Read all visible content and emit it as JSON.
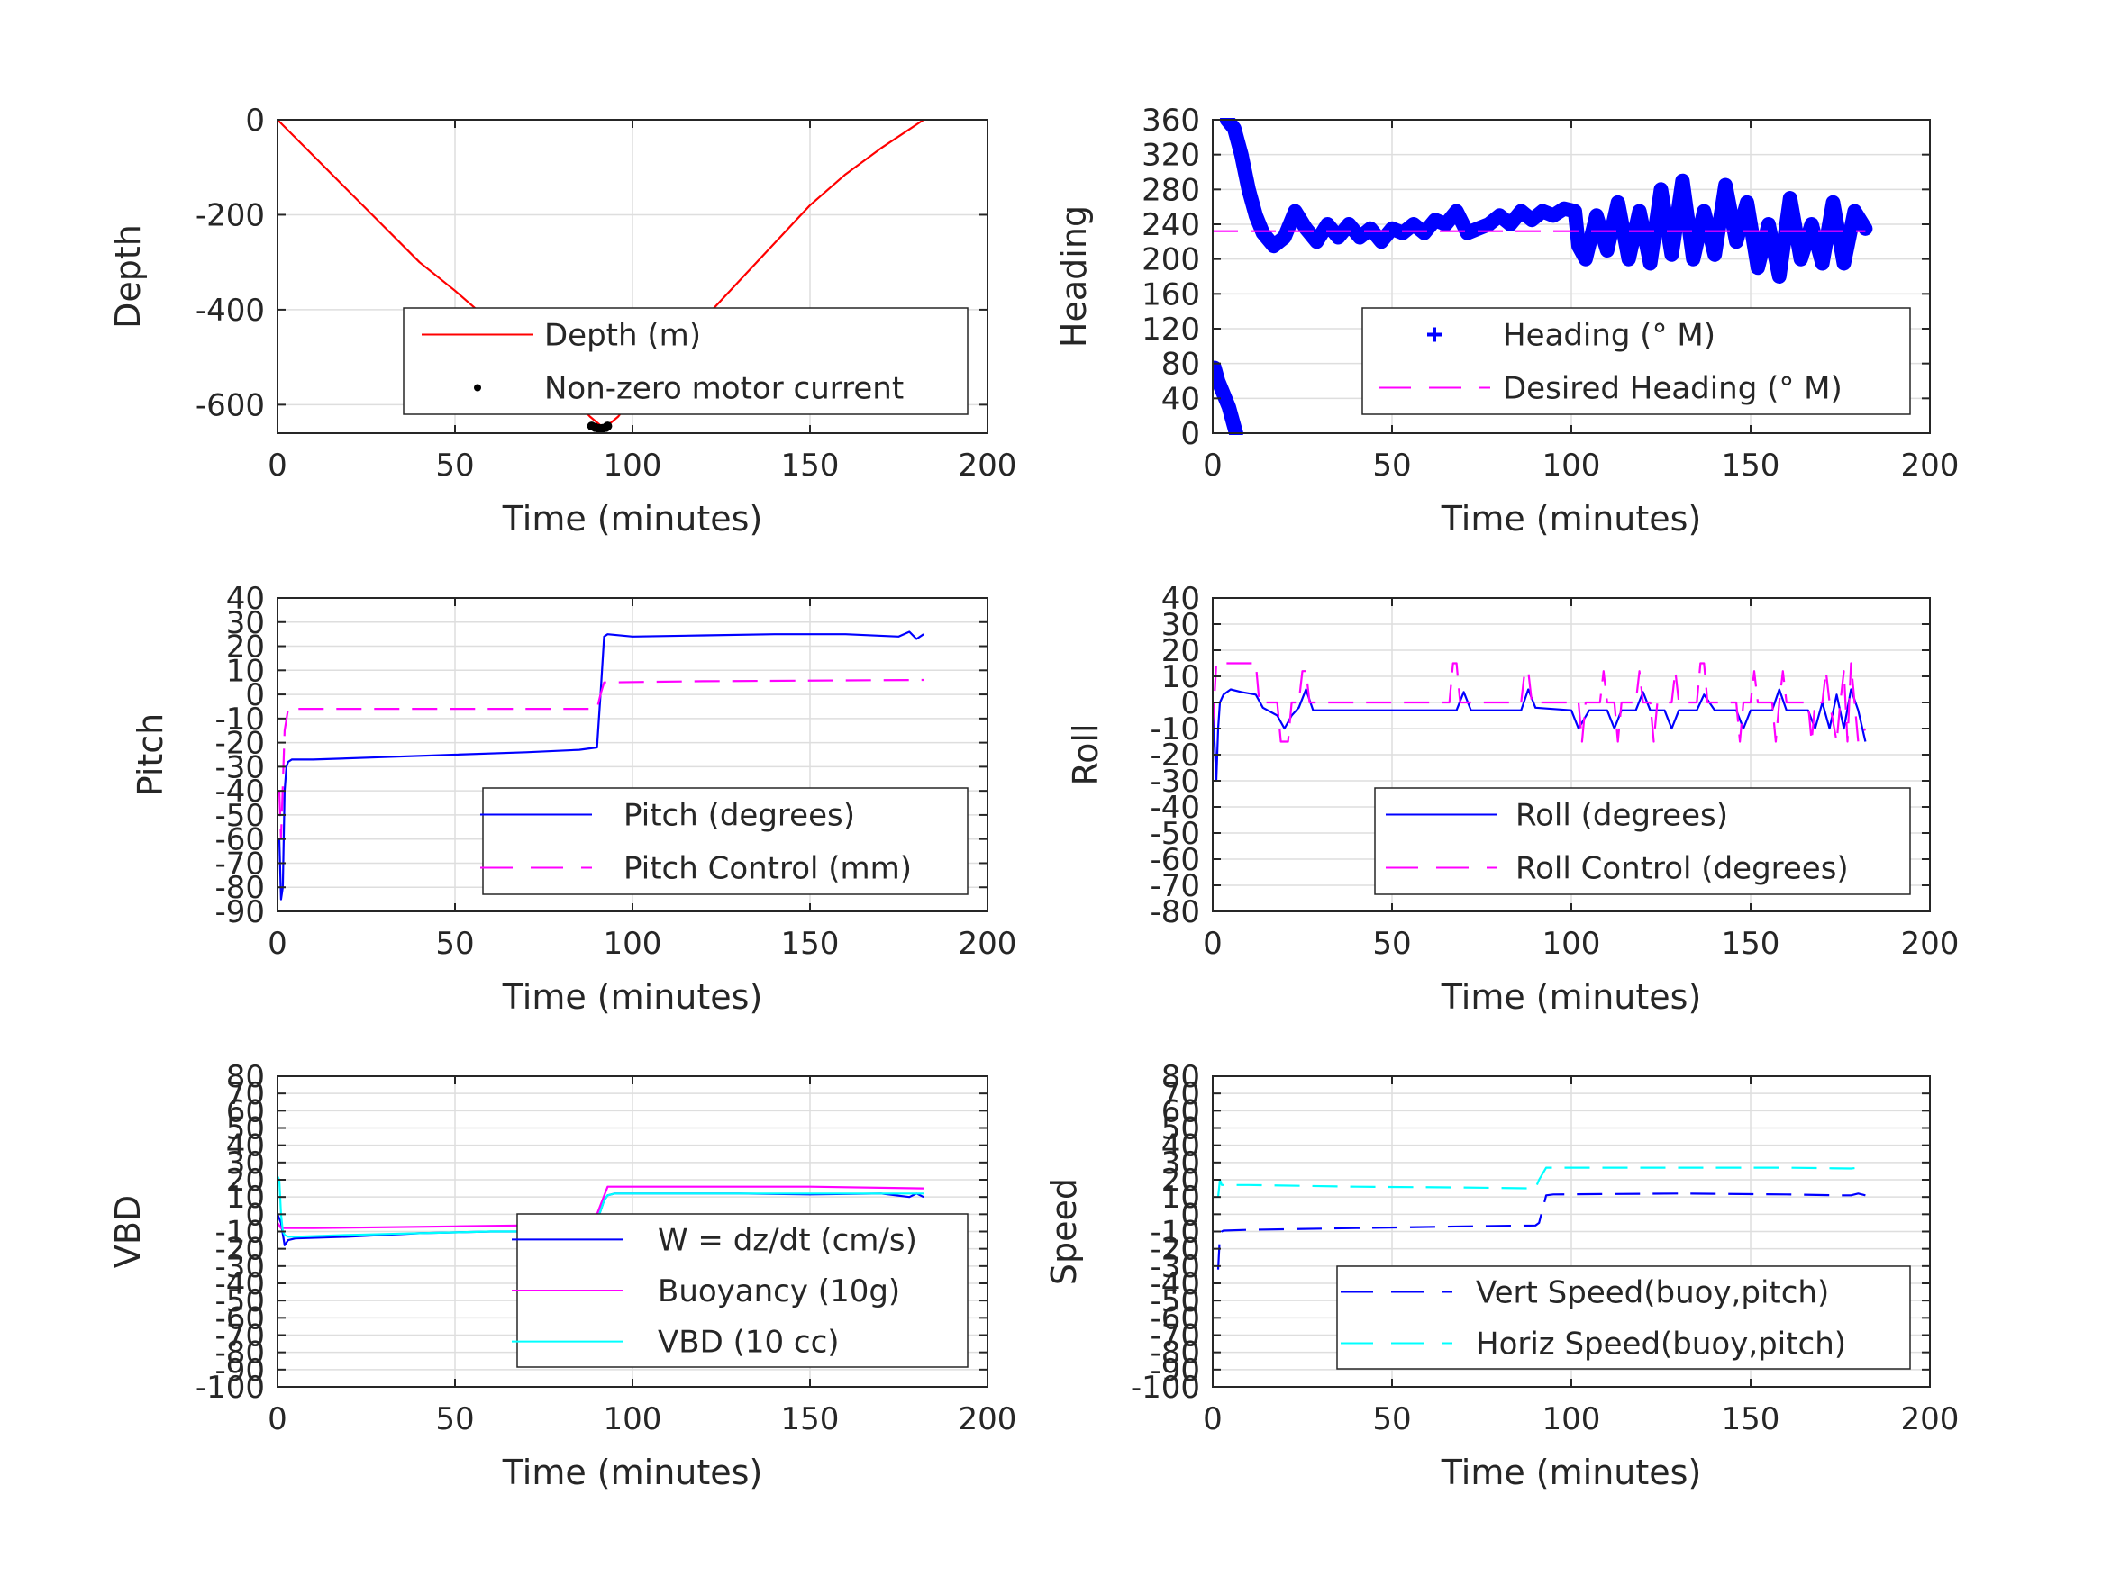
{
  "figure": {
    "background": "#ffffff",
    "grid_color": "#dedede",
    "axis_color": "#262626"
  },
  "chart_data": [
    {
      "id": "depth",
      "type": "line",
      "xlabel": "Time (minutes)",
      "ylabel": "Depth",
      "xlim": [
        0,
        200
      ],
      "ylim": [
        -660,
        0
      ],
      "xticks": [
        0,
        50,
        100,
        150,
        200
      ],
      "yticks": [
        0,
        -200,
        -400,
        -600
      ],
      "grid": true,
      "legend_position": "bottom-right",
      "series": [
        {
          "name": "Depth (m)",
          "color": "#ff0000",
          "style": "solid",
          "x": [
            0,
            10,
            20,
            30,
            40,
            50,
            60,
            70,
            80,
            88,
            92,
            96,
            100,
            110,
            120,
            130,
            140,
            150,
            160,
            170,
            182
          ],
          "y": [
            0,
            -75,
            -150,
            -225,
            -300,
            -360,
            -425,
            -490,
            -560,
            -625,
            -650,
            -625,
            -585,
            -500,
            -420,
            -340,
            -260,
            -180,
            -115,
            -60,
            0
          ]
        },
        {
          "name": "Non-zero motor current",
          "color": "#000000",
          "style": "dots",
          "x": [
            88.5,
            89.5,
            90.5,
            91.5,
            92.5,
            93
          ],
          "y": [
            -645,
            -648,
            -650,
            -650,
            -648,
            -645
          ]
        }
      ]
    },
    {
      "id": "heading",
      "type": "line",
      "xlabel": "Time (minutes)",
      "ylabel": "Heading",
      "xlim": [
        0,
        200
      ],
      "ylim": [
        0,
        360
      ],
      "xticks": [
        0,
        50,
        100,
        150,
        200
      ],
      "yticks": [
        0,
        40,
        80,
        120,
        160,
        200,
        240,
        280,
        320,
        360
      ],
      "grid": true,
      "legend_position": "bottom-right",
      "series": [
        {
          "name": "Heading (° M)",
          "color": "#0000ff",
          "style": "plus-thick",
          "x": [
            4,
            6,
            8,
            10,
            12,
            14,
            17,
            20,
            23,
            26,
            29,
            32,
            35,
            38,
            41,
            44,
            47,
            50,
            53,
            56,
            59,
            62,
            65,
            68,
            71,
            74,
            77,
            80,
            83,
            86,
            89,
            92,
            95,
            98,
            101,
            102,
            104,
            107,
            110,
            113,
            116,
            119,
            122,
            125,
            128,
            131,
            134,
            137,
            140,
            143,
            146,
            149,
            152,
            155,
            158,
            161,
            164,
            167,
            170,
            173,
            176,
            179,
            182
          ],
          "y": [
            360,
            350,
            320,
            280,
            250,
            230,
            215,
            225,
            255,
            235,
            220,
            240,
            225,
            240,
            225,
            235,
            220,
            235,
            230,
            240,
            230,
            245,
            240,
            255,
            230,
            235,
            240,
            250,
            240,
            255,
            245,
            255,
            250,
            258,
            255,
            215,
            200,
            250,
            210,
            265,
            200,
            255,
            195,
            280,
            205,
            290,
            200,
            255,
            205,
            285,
            220,
            265,
            190,
            240,
            180,
            270,
            200,
            240,
            195,
            265,
            195,
            255,
            235
          ]
        },
        {
          "name": "",
          "color": "#0000ff",
          "style": "plus-thick",
          "x": [
            0.5,
            1.5,
            2.5,
            3.5,
            4.5,
            5.5,
            6.5
          ],
          "y": [
            75,
            60,
            50,
            40,
            30,
            15,
            0
          ]
        },
        {
          "name": "Desired Heading (° M)",
          "color": "#ff00ff",
          "style": "dashed",
          "x": [
            0,
            182
          ],
          "y": [
            232,
            232
          ]
        }
      ]
    },
    {
      "id": "pitch",
      "type": "line",
      "xlabel": "Time (minutes)",
      "ylabel": "Pitch",
      "xlim": [
        0,
        200
      ],
      "ylim": [
        -90,
        40
      ],
      "xticks": [
        0,
        50,
        100,
        150,
        200
      ],
      "yticks": [
        40,
        30,
        20,
        10,
        0,
        -10,
        -20,
        -30,
        -40,
        -50,
        -60,
        -70,
        -80,
        -90
      ],
      "grid": true,
      "legend_position": "bottom-right",
      "series": [
        {
          "name": "Pitch (degrees)",
          "color": "#0000ff",
          "style": "solid",
          "x": [
            0.5,
            1,
            1.5,
            2,
            2.5,
            3,
            4,
            10,
            30,
            50,
            70,
            85,
            90,
            91,
            92,
            93,
            100,
            120,
            140,
            160,
            175,
            178,
            180,
            182
          ],
          "y": [
            -60,
            -85,
            -80,
            -40,
            -30,
            -28,
            -27,
            -27,
            -26,
            -25,
            -24,
            -23,
            -22,
            0,
            24,
            25,
            24,
            24.5,
            25,
            25,
            24,
            26,
            23,
            25
          ]
        },
        {
          "name": "Pitch Control (mm)",
          "color": "#ff00ff",
          "style": "dashed",
          "x": [
            0.5,
            1,
            2,
            3,
            10,
            50,
            90,
            91,
            92,
            93,
            120,
            182
          ],
          "y": [
            -40,
            -60,
            -15,
            -6,
            -6,
            -6,
            -6,
            0,
            5,
            5,
            5.5,
            6
          ]
        }
      ]
    },
    {
      "id": "roll",
      "type": "line",
      "xlabel": "Time (minutes)",
      "ylabel": "Roll",
      "xlim": [
        0,
        200
      ],
      "ylim": [
        -80,
        40
      ],
      "xticks": [
        0,
        50,
        100,
        150,
        200
      ],
      "yticks": [
        40,
        30,
        20,
        10,
        0,
        -10,
        -20,
        -30,
        -40,
        -50,
        -60,
        -70,
        -80
      ],
      "grid": true,
      "legend_position": "bottom-right",
      "series": [
        {
          "name": "Roll (degrees)",
          "color": "#0000ff",
          "style": "solid",
          "x": [
            0,
            1,
            1.5,
            2,
            3,
            5,
            8,
            12,
            14,
            18,
            20,
            22,
            24,
            26,
            28,
            40,
            60,
            68,
            70,
            72,
            80,
            86,
            88,
            90,
            100,
            102,
            105,
            110,
            112,
            114,
            118,
            120,
            122,
            126,
            128,
            130,
            135,
            137,
            140,
            146,
            148,
            150,
            156,
            158,
            160,
            166,
            168,
            170,
            172,
            174,
            176,
            178,
            180,
            182
          ],
          "y": [
            0,
            -30,
            -10,
            0,
            3,
            5,
            4,
            3,
            -2,
            -5,
            -10,
            -5,
            -2,
            5,
            -3,
            -3,
            -3,
            -3,
            4,
            -3,
            -3,
            -3,
            5,
            -2,
            -3,
            -10,
            -3,
            -3,
            -10,
            -3,
            -3,
            4,
            -3,
            -3,
            -10,
            -3,
            -3,
            3,
            -3,
            -3,
            -10,
            -3,
            -3,
            5,
            -3,
            -3,
            -10,
            0,
            -10,
            3,
            -10,
            5,
            -3,
            -15
          ]
        },
        {
          "name": "Roll Control (degrees)",
          "color": "#ff00ff",
          "style": "dashed",
          "x": [
            0,
            1,
            2,
            12,
            13,
            18,
            19,
            21,
            22,
            24,
            25,
            26,
            27,
            28,
            65,
            66,
            67,
            68,
            69,
            70,
            86,
            87,
            88,
            89,
            90,
            102,
            103,
            104,
            108,
            109,
            110,
            112,
            113,
            114,
            118,
            119,
            120,
            122,
            123,
            124,
            128,
            129,
            130,
            135,
            136,
            137,
            138,
            139,
            140,
            146,
            147,
            148,
            150,
            151,
            152,
            156,
            157,
            158,
            159,
            160,
            166,
            167,
            168,
            170,
            171,
            172,
            174,
            175,
            176,
            177,
            178,
            179,
            180,
            182
          ],
          "y": [
            -10,
            15,
            15,
            15,
            0,
            0,
            -15,
            -15,
            0,
            0,
            12,
            12,
            0,
            0,
            0,
            0,
            15,
            15,
            0,
            0,
            0,
            12,
            12,
            0,
            0,
            0,
            -15,
            0,
            0,
            12,
            0,
            0,
            -15,
            0,
            0,
            12,
            0,
            0,
            -15,
            0,
            0,
            12,
            0,
            0,
            15,
            15,
            0,
            0,
            0,
            0,
            -15,
            0,
            0,
            12,
            0,
            0,
            -15,
            0,
            12,
            0,
            0,
            -15,
            0,
            0,
            12,
            0,
            -15,
            0,
            12,
            -15,
            15,
            0,
            -15,
            -10
          ]
        }
      ]
    },
    {
      "id": "vbd",
      "type": "line",
      "xlabel": "Time (minutes)",
      "ylabel": "VBD",
      "xlim": [
        0,
        200
      ],
      "ylim": [
        -100,
        80
      ],
      "xticks": [
        0,
        50,
        100,
        150,
        200
      ],
      "yticks": [
        80,
        70,
        60,
        50,
        40,
        30,
        20,
        10,
        0,
        -10,
        -20,
        -30,
        -40,
        -50,
        -60,
        -70,
        -80,
        -90,
        -100
      ],
      "yticklabels": [
        "80",
        "70",
        "60",
        "50",
        "40",
        "30",
        "20",
        "10",
        "0",
        "-10",
        "-20",
        "-30",
        "-40",
        "-50",
        "-60",
        "-70",
        "-80",
        "-90",
        "-100"
      ],
      "grid": true,
      "legend_position": "bottom-right",
      "series": [
        {
          "name": "W = dz/dt (cm/s)",
          "color": "#0000ff",
          "style": "solid",
          "x": [
            0,
            1,
            2,
            3,
            5,
            20,
            40,
            60,
            80,
            89,
            90,
            92,
            93,
            95,
            110,
            130,
            150,
            170,
            178,
            180,
            182
          ],
          "y": [
            0,
            -5,
            -18,
            -15,
            -14,
            -13,
            -11,
            -10,
            -10,
            -9,
            -4,
            8,
            11,
            12,
            12,
            12,
            11.5,
            12,
            10,
            12,
            10
          ]
        },
        {
          "name": "Buoyancy (10g)",
          "color": "#ff00ff",
          "style": "solid",
          "x": [
            0,
            1,
            2,
            3,
            10,
            50,
            89,
            90,
            93,
            95,
            120,
            150,
            182
          ],
          "y": [
            -5,
            -8,
            -8,
            -8,
            -8,
            -7,
            -6,
            0,
            16,
            16,
            16,
            16,
            15
          ]
        },
        {
          "name": "VBD (10 cc)",
          "color": "#00ffff",
          "style": "solid",
          "x": [
            0,
            0.5,
            1,
            1.5,
            2,
            3,
            5,
            20,
            40,
            60,
            80,
            89,
            90,
            92,
            93,
            95,
            110,
            130,
            150,
            170,
            182
          ],
          "y": [
            22,
            20,
            0,
            -10,
            -12,
            -13,
            -13,
            -12,
            -11,
            -10,
            -10,
            -9,
            -4,
            8,
            11,
            12,
            12,
            12,
            12,
            12,
            12
          ]
        }
      ]
    },
    {
      "id": "speed",
      "type": "line",
      "xlabel": "Time (minutes)",
      "ylabel": "Speed",
      "xlim": [
        0,
        200
      ],
      "ylim": [
        -100,
        80
      ],
      "xticks": [
        0,
        50,
        100,
        150,
        200
      ],
      "yticks": [
        80,
        70,
        60,
        50,
        40,
        30,
        20,
        10,
        0,
        -10,
        -20,
        -30,
        -40,
        -50,
        -60,
        -70,
        -80,
        -90,
        -100
      ],
      "yticklabels": [
        "80",
        "70",
        "60",
        "50",
        "40",
        "30",
        "20",
        "10",
        "0",
        "-10",
        "-20",
        "-30",
        "-40",
        "-50",
        "-60",
        "-70",
        "-80",
        "-90",
        "-100"
      ],
      "grid": true,
      "legend_position": "bottom-right",
      "series": [
        {
          "name": "Vert Speed(buoy,pitch)",
          "color": "#0000ff",
          "style": "dashed",
          "x": [
            1.5,
            2,
            2.5,
            3,
            10,
            40,
            70,
            90,
            91,
            93,
            95,
            130,
            160,
            175,
            178,
            180,
            182
          ],
          "y": [
            -32,
            -12,
            -10,
            -9.5,
            -9,
            -8,
            -7,
            -6.5,
            -5,
            11,
            11.5,
            12,
            11.5,
            11,
            11,
            12,
            11
          ]
        },
        {
          "name": "Horiz Speed(buoy,pitch)",
          "color": "#00ffff",
          "style": "dashed",
          "x": [
            1.5,
            2,
            2.5,
            3,
            10,
            40,
            70,
            90,
            91,
            93,
            95,
            130,
            160,
            178,
            180,
            182
          ],
          "y": [
            10,
            20,
            17,
            17,
            17,
            16,
            15.5,
            15,
            20,
            27,
            27,
            27,
            27,
            26.5,
            27,
            26
          ]
        }
      ]
    }
  ]
}
